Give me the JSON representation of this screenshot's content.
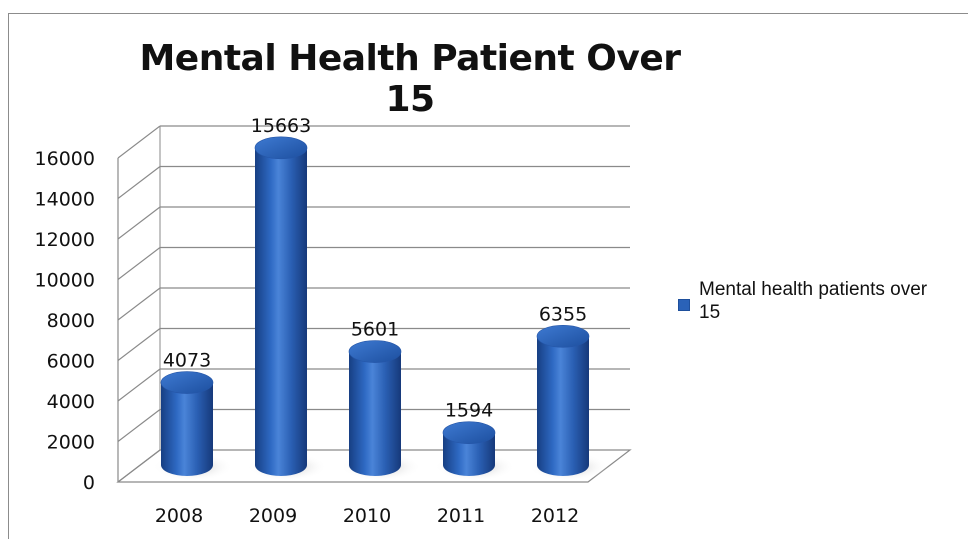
{
  "chart_data": {
    "type": "bar",
    "style": "3d-cylinder",
    "title": "Mental Health Patient Over 15",
    "xlabel": "",
    "ylabel": "",
    "categories": [
      "2008",
      "2009",
      "2010",
      "2011",
      "2012"
    ],
    "series": [
      {
        "name": "Mental health patients over 15",
        "values": [
          4073,
          15663,
          5601,
          1594,
          6355
        ],
        "color": "#2a62b8"
      }
    ],
    "data_labels": [
      "4073",
      "15663",
      "5601",
      "1594",
      "6355"
    ],
    "ylim": [
      0,
      16000
    ],
    "yticks": [
      0,
      2000,
      4000,
      6000,
      8000,
      10000,
      12000,
      14000,
      16000
    ],
    "ytick_labels": [
      "0",
      "2000",
      "4000",
      "6000",
      "8000",
      "10000",
      "12000",
      "14000",
      "16000"
    ],
    "grid": true,
    "legend_position": "right"
  },
  "legend": {
    "label": "Mental health patients over 15"
  },
  "colors": {
    "bar": "#2a62b8",
    "bar_dark": "#1b4790",
    "grid": "#8a8a8a",
    "text": "#111111"
  }
}
